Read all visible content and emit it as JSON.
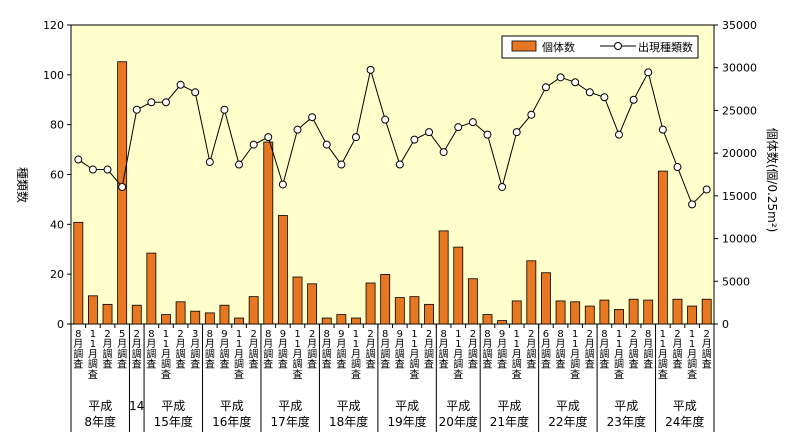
{
  "chart_data": {
    "type": "bar+line",
    "y_left_label": "種類数",
    "y_right_label": "個体数(個/0.25m²)",
    "y_left_lim": [
      0,
      120
    ],
    "y_left_ticks": [
      "0",
      "20",
      "40",
      "60",
      "80",
      "100",
      "120"
    ],
    "y_right_lim": [
      0,
      35000
    ],
    "y_right_ticks": [
      "0",
      "5000",
      "10000",
      "15000",
      "20000",
      "25000",
      "30000",
      "35000"
    ],
    "grid": false,
    "legend_position": "top-right",
    "colors": {
      "plot_bg": "#ffffcc",
      "bar_fill": "#e87722",
      "bar_stroke": "#000000",
      "line": "#000000",
      "marker_fill": "#ffffff"
    },
    "series": [
      {
        "name": "個体数",
        "kind": "bar",
        "axis": "right",
        "values": [
          11900,
          3300,
          2300,
          30700,
          2200,
          8300,
          1100,
          2600,
          1500,
          1300,
          2200,
          700,
          3200,
          21300,
          12700,
          5500,
          4700,
          700,
          1100,
          700,
          4800,
          5800,
          3100,
          3200,
          2300,
          10900,
          9000,
          5300,
          1100,
          400,
          2700,
          7400,
          6000,
          2700,
          2600,
          2100,
          2800,
          1700,
          2900,
          2800,
          17900,
          2900,
          2100,
          2900
        ]
      },
      {
        "name": "出現種類数",
        "kind": "line",
        "axis": "left",
        "values": [
          66,
          62,
          62,
          55,
          86,
          89,
          89,
          96,
          93,
          65,
          86,
          64,
          72,
          75,
          56,
          78,
          83,
          72,
          64,
          75,
          102,
          82,
          64,
          74,
          77,
          69,
          79,
          81,
          76,
          55,
          77,
          84,
          95,
          99,
          97,
          93,
          91,
          76,
          90,
          101,
          78,
          63,
          48,
          54
        ]
      }
    ],
    "categories": [
      "8月調査",
      "11月調査",
      "2月調査",
      "5月調査",
      "2月調査",
      "8月調査",
      "11月調査",
      "2月調査",
      "3月調査",
      "8月調査",
      "9月調査",
      "11月調査",
      "2月調査",
      "8月調査",
      "9月調査",
      "11月調査",
      "2月調査",
      "8月調査",
      "9月調査",
      "11月調査",
      "2月調査",
      "8月調査",
      "9月調査",
      "11月調査",
      "2月調査",
      "8月調査",
      "11月調査",
      "2月調査",
      "8月調査",
      "9月調査",
      "11月調査",
      "2月調査",
      "6月調査",
      "8月調査",
      "11月調査",
      "2月調査",
      "8月調査",
      "11月調査",
      "2月調査",
      "8月調査",
      "11月調査",
      "2月調査",
      "11月調査",
      "2月調査"
    ],
    "groups": [
      {
        "line1": "平成",
        "line2": "8年度",
        "count": 4
      },
      {
        "line1": "14",
        "line2": "",
        "count": 1
      },
      {
        "line1": "平成",
        "line2": "15年度",
        "count": 4
      },
      {
        "line1": "平成",
        "line2": "16年度",
        "count": 4
      },
      {
        "line1": "平成",
        "line2": "17年度",
        "count": 4
      },
      {
        "line1": "平成",
        "line2": "18年度",
        "count": 4
      },
      {
        "line1": "平成",
        "line2": "19年度",
        "count": 4
      },
      {
        "line1": "平成",
        "line2": "20年度",
        "count": 3
      },
      {
        "line1": "平成",
        "line2": "21年度",
        "count": 4
      },
      {
        "line1": "平成",
        "line2": "22年度",
        "count": 4
      },
      {
        "line1": "平成",
        "line2": "23年度",
        "count": 4
      },
      {
        "line1": "平成",
        "line2": "24年度",
        "count": 4
      }
    ]
  }
}
